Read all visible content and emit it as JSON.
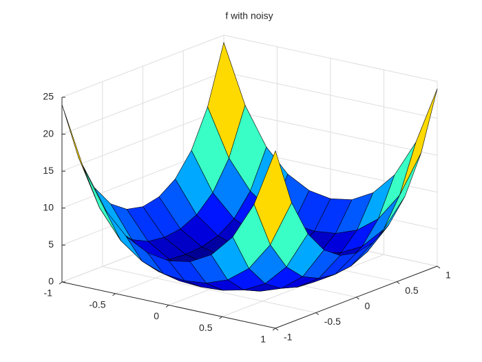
{
  "chart_data": {
    "type": "surface",
    "title": "f with noisy",
    "x": [
      -1,
      -0.8,
      -0.6,
      -0.4,
      -0.2,
      0,
      0.2,
      0.4,
      0.6,
      0.8,
      1
    ],
    "y": [
      -1,
      -0.8,
      -0.6,
      -0.4,
      -0.2,
      0,
      0.2,
      0.4,
      0.6,
      0.8,
      1
    ],
    "z": [
      [
        24,
        16.14,
        11.1,
        8.07,
        6.49,
        6,
        6.49,
        8.07,
        11.1,
        16.14,
        24
      ],
      [
        16.14,
        9.83,
        6,
        3.84,
        2.77,
        2.46,
        2.77,
        3.84,
        6,
        9.83,
        16.14
      ],
      [
        11.1,
        6,
        3.11,
        1.62,
        0.96,
        0.78,
        0.96,
        1.62,
        3.11,
        6,
        11.1
      ],
      [
        8.07,
        3.84,
        1.62,
        0.61,
        0.24,
        0.15,
        0.24,
        0.61,
        1.62,
        3.84,
        8.07
      ],
      [
        6.49,
        2.77,
        0.96,
        0.24,
        0.04,
        0.01,
        0.04,
        0.24,
        0.96,
        2.77,
        6.49
      ],
      [
        6,
        2.46,
        0.78,
        0.15,
        0.01,
        0,
        0.01,
        0.15,
        0.78,
        2.46,
        6
      ],
      [
        6.49,
        2.77,
        0.96,
        0.24,
        0.04,
        0.01,
        0.04,
        0.24,
        0.96,
        2.77,
        6.49
      ],
      [
        8.07,
        3.84,
        1.62,
        0.61,
        0.24,
        0.15,
        0.24,
        0.61,
        1.62,
        3.84,
        8.07
      ],
      [
        11.1,
        6,
        3.11,
        1.62,
        0.96,
        0.78,
        0.96,
        1.62,
        3.11,
        6,
        11.1
      ],
      [
        16.14,
        9.83,
        6,
        3.84,
        2.77,
        2.46,
        2.77,
        3.84,
        6,
        9.83,
        16.14
      ],
      [
        24,
        16.14,
        11.1,
        8.07,
        6.49,
        6,
        6.49,
        8.07,
        11.1,
        16.14,
        24
      ]
    ],
    "xlim": [
      -1,
      1
    ],
    "ylim": [
      -1,
      1
    ],
    "zlim": [
      0,
      25
    ],
    "xticks": [
      -1,
      -0.5,
      0,
      0.5,
      1
    ],
    "yticks": [
      -1,
      -0.5,
      0,
      0.5,
      1
    ],
    "zticks": [
      0,
      5,
      10,
      15,
      20,
      25
    ],
    "colormap": "jet",
    "grid": true
  }
}
